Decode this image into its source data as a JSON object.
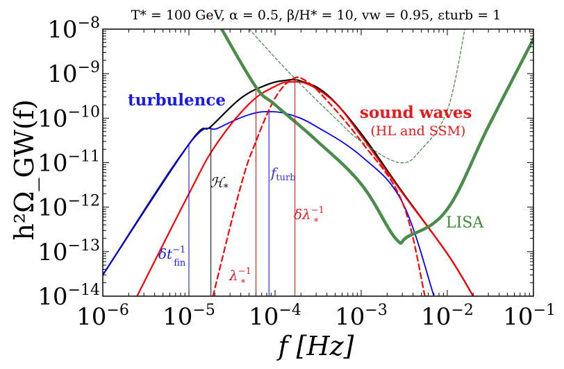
{
  "chart_data": {
    "type": "line",
    "title": "T* = 100 GeV, α = 0.5, β/H* = 10, vw = 0.95, εturb = 1",
    "xlabel": "f [Hz]",
    "ylabel": "h²Ω_GW(f)",
    "x_scale": "log",
    "y_scale": "log",
    "xlim": [
      1e-06,
      0.1
    ],
    "ylim": [
      1e-14,
      1e-08
    ],
    "x_ticks": [
      {
        "value": 1e-06,
        "base": "10",
        "exp": "−6"
      },
      {
        "value": 1e-05,
        "base": "10",
        "exp": "−5"
      },
      {
        "value": 0.0001,
        "base": "10",
        "exp": "−4"
      },
      {
        "value": 0.001,
        "base": "10",
        "exp": "−3"
      },
      {
        "value": 0.01,
        "base": "10",
        "exp": "−2"
      },
      {
        "value": 0.1,
        "base": "10",
        "exp": "−1"
      }
    ],
    "y_ticks": [
      {
        "value": 1e-08,
        "base": "10",
        "exp": "−8"
      },
      {
        "value": 1e-09,
        "base": "10",
        "exp": "−9"
      },
      {
        "value": 1e-10,
        "base": "10",
        "exp": "−10"
      },
      {
        "value": 1e-11,
        "base": "10",
        "exp": "−11"
      },
      {
        "value": 1e-12,
        "base": "10",
        "exp": "−12"
      },
      {
        "value": 1e-13,
        "base": "10",
        "exp": "−13"
      },
      {
        "value": 1e-14,
        "base": "10",
        "exp": "−14"
      }
    ],
    "series": [
      {
        "key": "total",
        "color": "#000000",
        "width": 2.2,
        "dash": "",
        "points": [
          [
            1e-06,
            3e-14
          ],
          [
            1e-05,
            2.6e-11
          ],
          [
            1.8e-05,
            6.5e-11
          ],
          [
            4e-05,
            2.8e-10
          ],
          [
            8e-05,
            5.6e-10
          ],
          [
            0.00013,
            7e-10
          ],
          [
            0.0002,
            6.8e-10
          ],
          [
            0.0004,
            3.4e-10
          ],
          [
            0.001,
            4.5e-11
          ],
          [
            0.003,
            2.2e-12
          ],
          [
            0.01,
            9e-14
          ],
          [
            0.02,
            1e-14
          ]
        ]
      },
      {
        "key": "turbulence",
        "color": "#0000ff",
        "width": 1.8,
        "dash": "",
        "points": [
          [
            1e-06,
            3e-14
          ],
          [
            1e-05,
            2.6e-11
          ],
          [
            2.2e-05,
            6e-11
          ],
          [
            5e-05,
            1.2e-10
          ],
          [
            9e-05,
            1.4e-10
          ],
          [
            0.00016,
            1.15e-10
          ],
          [
            0.0003,
            6.5e-11
          ],
          [
            0.001,
            1.4e-11
          ],
          [
            0.003,
            1.3e-12
          ],
          [
            0.007,
            1e-14
          ]
        ]
      },
      {
        "key": "sound_waves_HL",
        "color": "#ff0000",
        "width": 2.2,
        "dash": "",
        "points": [
          [
            2.5e-06,
            1e-14
          ],
          [
            1e-05,
            2e-12
          ],
          [
            2e-05,
            2.3e-11
          ],
          [
            5e-05,
            2.1e-10
          ],
          [
            0.0001,
            5.2e-10
          ],
          [
            0.00015,
            6.5e-10
          ],
          [
            0.00025,
            5.6e-10
          ],
          [
            0.0005,
            2.2e-10
          ],
          [
            0.001,
            4e-11
          ],
          [
            0.003,
            2.1e-12
          ],
          [
            0.01,
            9e-14
          ],
          [
            0.02,
            1e-14
          ]
        ]
      },
      {
        "key": "sound_waves_SSM",
        "color": "#ff0000",
        "width": 2.2,
        "dash": "8 5",
        "points": [
          [
            1.9e-05,
            1e-14
          ],
          [
            4e-05,
            3e-12
          ],
          [
            6e-05,
            3e-11
          ],
          [
            0.0001,
            2.8e-10
          ],
          [
            0.00016,
            7.6e-10
          ],
          [
            0.00023,
            6.8e-10
          ],
          [
            0.0004,
            2.5e-10
          ],
          [
            0.001,
            3e-11
          ],
          [
            0.003,
            1.3e-12
          ],
          [
            0.0055,
            1e-14
          ]
        ]
      },
      {
        "key": "lisa_sensitivity",
        "color": "#4a8c4a",
        "width": 4.5,
        "dash": "",
        "points": [
          [
            2.4e-05,
            1e-08
          ],
          [
            6e-05,
            5e-10
          ],
          [
            0.0001,
            2e-10
          ],
          [
            0.0003,
            3.2e-11
          ],
          [
            0.001,
            3.3e-12
          ],
          [
            0.0025,
            2e-13
          ],
          [
            0.0035,
            2.2e-13
          ],
          [
            0.01,
            9e-13
          ],
          [
            0.03,
            6.5e-11
          ],
          [
            0.1,
            6e-09
          ]
        ]
      },
      {
        "key": "lisa_pls",
        "color": "#4a8c4a",
        "width": 1.3,
        "dash": "4 3",
        "points": [
          [
            5e-05,
            1e-08
          ],
          [
            0.00015,
            1e-09
          ],
          [
            0.0005,
            1e-10
          ],
          [
            0.001,
            3e-11
          ],
          [
            0.0028,
            1e-11
          ],
          [
            0.005,
            2e-11
          ],
          [
            0.01,
            1.5e-10
          ],
          [
            0.016,
            1e-08
          ]
        ]
      }
    ],
    "vlines": [
      {
        "key": "dt_fin",
        "x": 1e-05,
        "y_top": 2.6e-11,
        "color": "#0000ff",
        "width": 1
      },
      {
        "key": "H_star",
        "x": 1.8e-05,
        "y_top": 6.5e-11,
        "color": "#000000",
        "width": 1
      },
      {
        "key": "lambda_inv",
        "x": 6e-05,
        "y_top": 4.1e-10,
        "color": "#ff0000",
        "width": 1
      },
      {
        "key": "f_turb",
        "x": 8.5e-05,
        "y_top": 1.4e-10,
        "color": "#0000ff",
        "width": 1
      },
      {
        "key": "dlambda_inv",
        "x": 0.00017,
        "y_top": 7e-10,
        "color": "#ff0000",
        "width": 1
      }
    ],
    "annotations": {
      "turbulence": "turbulence",
      "sound_waves": "sound waves",
      "sound_waves_sub": "(HL and SSM)",
      "lisa": "LISA",
      "f_turb": "f",
      "f_turb_sub": "turb",
      "H_star": "ℋ",
      "H_star_sub": "*",
      "dt_fin": "δt",
      "dt_fin_sup": "−1",
      "dt_fin_sub": "fin",
      "lambda_inv": "λ",
      "lambda_inv_sup": "−1",
      "lambda_inv_sub": "*",
      "dlambda_inv": "δλ",
      "dlambda_inv_sup": "−1",
      "dlambda_inv_sub": "*"
    },
    "annotation_colors": {
      "turbulence": "#1a1ae6",
      "sound_waves": "#e61a1a",
      "lisa": "#3a8c3a",
      "f_turb": "#3333cc",
      "H_star": "#000000",
      "dt_fin": "#1a1ae6",
      "lambda_inv": "#e61a1a",
      "dlambda_inv": "#e61a1a"
    }
  }
}
